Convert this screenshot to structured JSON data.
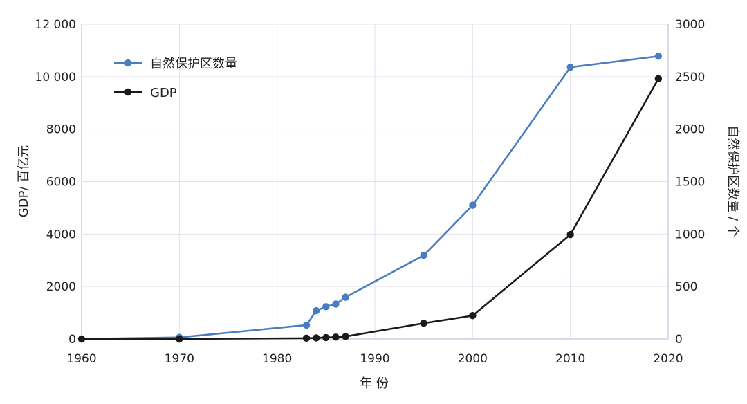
{
  "chart_data": {
    "type": "line",
    "xlabel": "年 份",
    "ylabel_left": "GDP/ 百亿元",
    "ylabel_right": "自然保护区数量 / 个",
    "xlim": [
      1960,
      2020
    ],
    "ylim_left": [
      0,
      12000
    ],
    "ylim_right": [
      0,
      3000
    ],
    "x_ticks": [
      1960,
      1970,
      1980,
      1990,
      2000,
      2010,
      2020
    ],
    "y_left_ticks": [
      0,
      2000,
      4000,
      6000,
      8000,
      10000,
      12000
    ],
    "y_left_tick_labels": [
      "0",
      "2000",
      "4000",
      "6000",
      "8000",
      "10 000",
      "12 000"
    ],
    "y_right_ticks": [
      0,
      500,
      1000,
      1500,
      2000,
      2500,
      3000
    ],
    "y_right_tick_labels": [
      "0",
      "500",
      "1000",
      "1500",
      "2000",
      "2500",
      "3000"
    ],
    "grid": true,
    "legend_position": "top-left",
    "series": [
      {
        "name": "自然保护区数量",
        "axis": "right",
        "color": "#4a7cc0",
        "x": [
          1960,
          1970,
          1983,
          1984,
          1985,
          1986,
          1987,
          1995,
          2000,
          2010,
          2019
        ],
        "values": [
          0,
          15,
          132,
          270,
          308,
          333,
          398,
          797,
          1275,
          2590,
          2695
        ]
      },
      {
        "name": "GDP",
        "axis": "left",
        "color": "#1a1a1a",
        "x": [
          1960,
          1970,
          1983,
          1984,
          1985,
          1986,
          1987,
          1995,
          2000,
          2010,
          2019
        ],
        "values": [
          0,
          0,
          30,
          40,
          55,
          70,
          95,
          600,
          890,
          3980,
          9920
        ]
      }
    ]
  }
}
